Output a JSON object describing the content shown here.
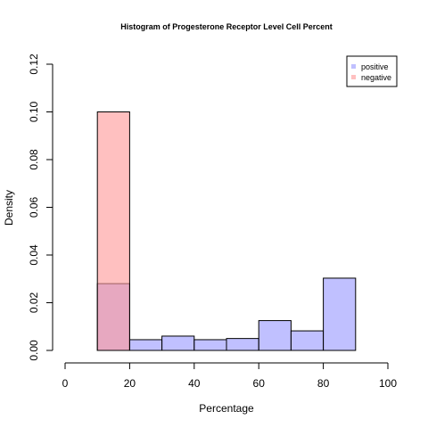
{
  "chart_data": {
    "type": "bar",
    "title": "Histogram of Progesterone Receptor Level Cell Percent",
    "xlabel": "Percentage",
    "ylabel": "Density",
    "xlim": [
      0,
      100
    ],
    "ylim": [
      0,
      0.12
    ],
    "x_ticks": [
      "0",
      "20",
      "40",
      "60",
      "80",
      "100"
    ],
    "y_ticks": [
      "0.00",
      "0.02",
      "0.04",
      "0.06",
      "0.08",
      "0.10",
      "0.12"
    ],
    "legend": {
      "position": "top-right",
      "entries": [
        "positive",
        "negative"
      ]
    },
    "series": [
      {
        "name": "positive",
        "color": "#9999ff",
        "bins": [
          {
            "x0": 10,
            "x1": 20,
            "density": 0.028
          },
          {
            "x0": 20,
            "x1": 30,
            "density": 0.0045
          },
          {
            "x0": 30,
            "x1": 40,
            "density": 0.006
          },
          {
            "x0": 40,
            "x1": 50,
            "density": 0.0045
          },
          {
            "x0": 50,
            "x1": 60,
            "density": 0.005
          },
          {
            "x0": 60,
            "x1": 70,
            "density": 0.0125
          },
          {
            "x0": 70,
            "x1": 80,
            "density": 0.0082
          },
          {
            "x0": 80,
            "x1": 90,
            "density": 0.0303
          }
        ]
      },
      {
        "name": "negative",
        "color": "#ff9999",
        "bins": [
          {
            "x0": 10,
            "x1": 20,
            "density": 0.1
          }
        ]
      }
    ]
  }
}
